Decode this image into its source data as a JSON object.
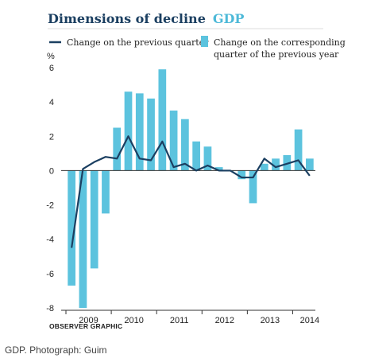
{
  "colors": {
    "title": "#1b3f61",
    "title_accent": "#4db9d8",
    "bar": "#5cc3de",
    "line": "#1b3f61",
    "axis": "#333333"
  },
  "header": {
    "title": "Dimensions of decline",
    "title_accent": "GDP"
  },
  "legend": {
    "line_label": "Change on the previous quarter",
    "bar_label_line1": "Change on the corresponding",
    "bar_label_line2": "quarter of the previous year"
  },
  "footer": {
    "source": "OBSERVER GRAPHIC",
    "caption": "GDP. Photograph: Guim"
  },
  "chart_data": {
    "type": "bar",
    "title": "Dimensions of decline GDP",
    "ylabel": "%",
    "ylim": [
      -8,
      6
    ],
    "yticks": [
      6,
      4,
      2,
      0,
      -2,
      -4,
      -6,
      -8
    ],
    "x_tick_labels": [
      "2009",
      "2010",
      "2011",
      "2012",
      "2013",
      "2014"
    ],
    "x_tick_label_index": [
      1.5,
      5.5,
      9.5,
      13.5,
      17.5,
      21.0
    ],
    "grid": false,
    "legend_position": "top",
    "series": [
      {
        "name": "Change on the corresponding quarter of the previous year",
        "kind": "bar",
        "values": [
          -6.7,
          -8.0,
          -5.7,
          -2.5,
          2.5,
          4.6,
          4.5,
          4.2,
          5.9,
          3.5,
          3.0,
          1.7,
          1.4,
          0.2,
          0.0,
          -0.5,
          -1.9,
          0.4,
          0.7,
          0.9,
          2.4,
          0.7
        ]
      },
      {
        "name": "Change on the previous quarter",
        "kind": "line",
        "values": [
          -4.5,
          0.1,
          0.5,
          0.8,
          0.7,
          2.0,
          0.7,
          0.6,
          1.7,
          0.2,
          0.4,
          0.0,
          0.3,
          0.0,
          0.0,
          -0.4,
          -0.4,
          0.7,
          0.2,
          0.4,
          0.6,
          -0.3
        ]
      }
    ]
  }
}
